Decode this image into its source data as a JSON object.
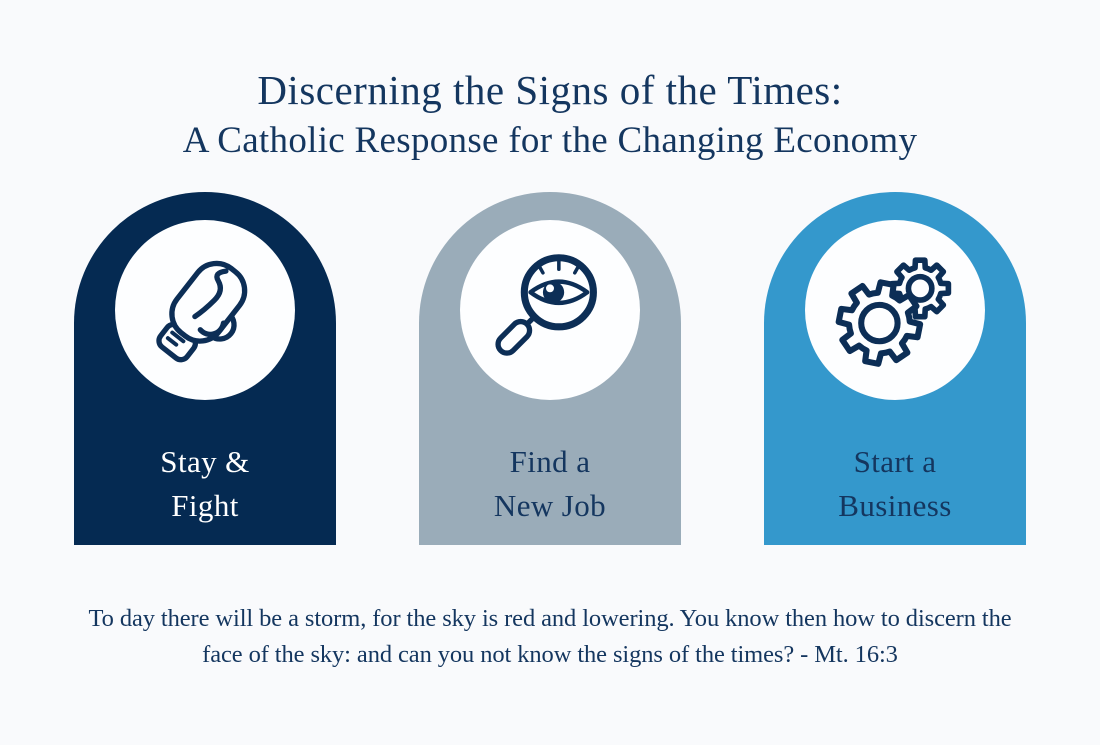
{
  "title": {
    "line1": "Discerning the Signs of the Times:",
    "line2": "A Catholic Response for the Changing Economy"
  },
  "cards": [
    {
      "id": "stay-and-fight",
      "icon": "boxing-glove-icon",
      "label_line1": "Stay &",
      "label_line2": "Fight"
    },
    {
      "id": "find-a-new-job",
      "icon": "magnifying-glass-eye-icon",
      "label_line1": "Find a",
      "label_line2": "New Job"
    },
    {
      "id": "start-a-business",
      "icon": "gears-icon",
      "label_line1": "Start a",
      "label_line2": "Business"
    }
  ],
  "quote": {
    "line1": "To day there will be a storm, for the sky is red and lowering. You know then how to discern the",
    "line2": "face of the sky: and can you not know the signs of the times? - Mt. 16:3"
  },
  "colors": {
    "bg": "#F9FAFC",
    "navy": "#052A52",
    "slate": "#9AACB9",
    "blue": "#3498CC",
    "circle": "#FDFEFF",
    "ink": "#0C2E56",
    "text": "#14365F",
    "label-light": "#FFFFFF"
  }
}
